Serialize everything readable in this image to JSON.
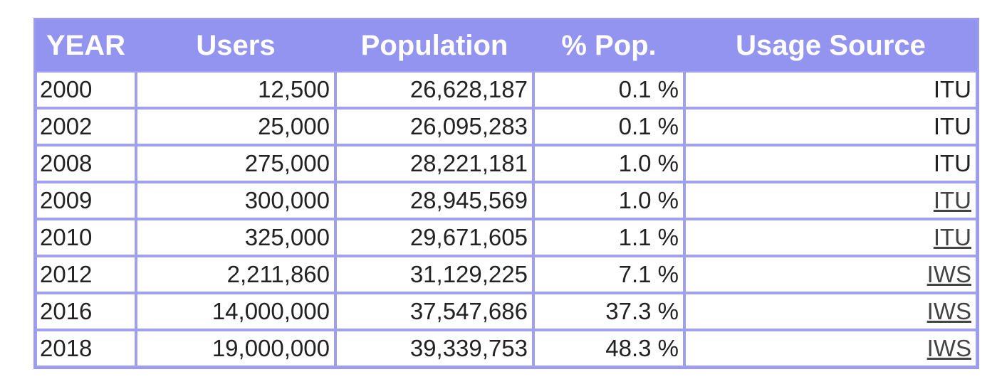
{
  "table": {
    "header": [
      "YEAR",
      "Users",
      "Population",
      "% Pop.",
      "Usage Source"
    ],
    "rows": [
      [
        "2000",
        "12,500",
        "26,628,187",
        "0.1 %",
        "ITU"
      ],
      [
        "2002",
        "25,000",
        "26,095,283",
        "0.1 %",
        "ITU"
      ],
      [
        "2008",
        "275,000",
        "28,221,181",
        "1.0 %",
        "ITU"
      ],
      [
        "2009",
        "300,000",
        "28,945,569",
        "1.0 %",
        "ITU"
      ],
      [
        "2010",
        "325,000",
        "29,671,605",
        "1.1 %",
        "ITU"
      ],
      [
        "2012",
        "2,211,860",
        "31,129,225",
        "7.1 %",
        "IWS"
      ],
      [
        "2016",
        "14,000,000",
        "37,547,686",
        "37.3 %",
        "IWS"
      ],
      [
        "2018",
        "19,000,000",
        "39,339,753",
        "48.3 %",
        "IWS"
      ]
    ]
  }
}
